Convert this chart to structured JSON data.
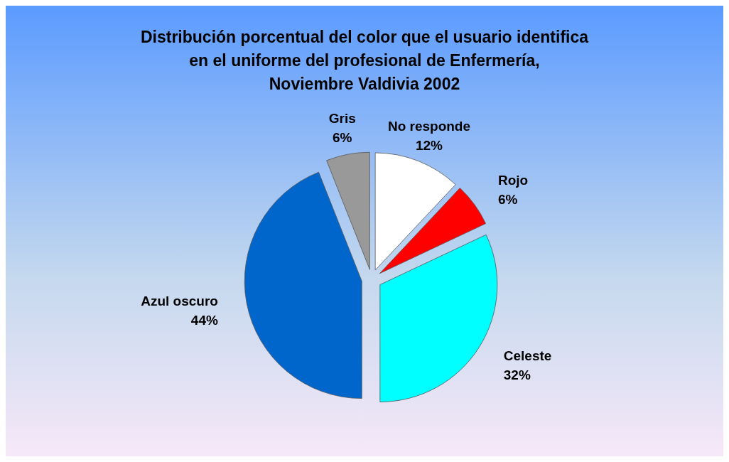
{
  "chart_data": {
    "type": "pie",
    "title": "Distribución porcentual del color que el usuario identifica\nen el uniforme del profesional de Enfermería,\nNoviembre Valdivia 2002",
    "categories": [
      "No responde",
      "Rojo",
      "Celeste",
      "Azul oscuro",
      "Gris"
    ],
    "values": [
      12,
      6,
      32,
      44,
      6
    ],
    "value_labels": [
      "12%",
      "6%",
      "32%",
      "44%",
      "6%"
    ],
    "colors": [
      "#ffffff",
      "#ff0000",
      "#00ffff",
      "#0066cc",
      "#999999"
    ]
  }
}
